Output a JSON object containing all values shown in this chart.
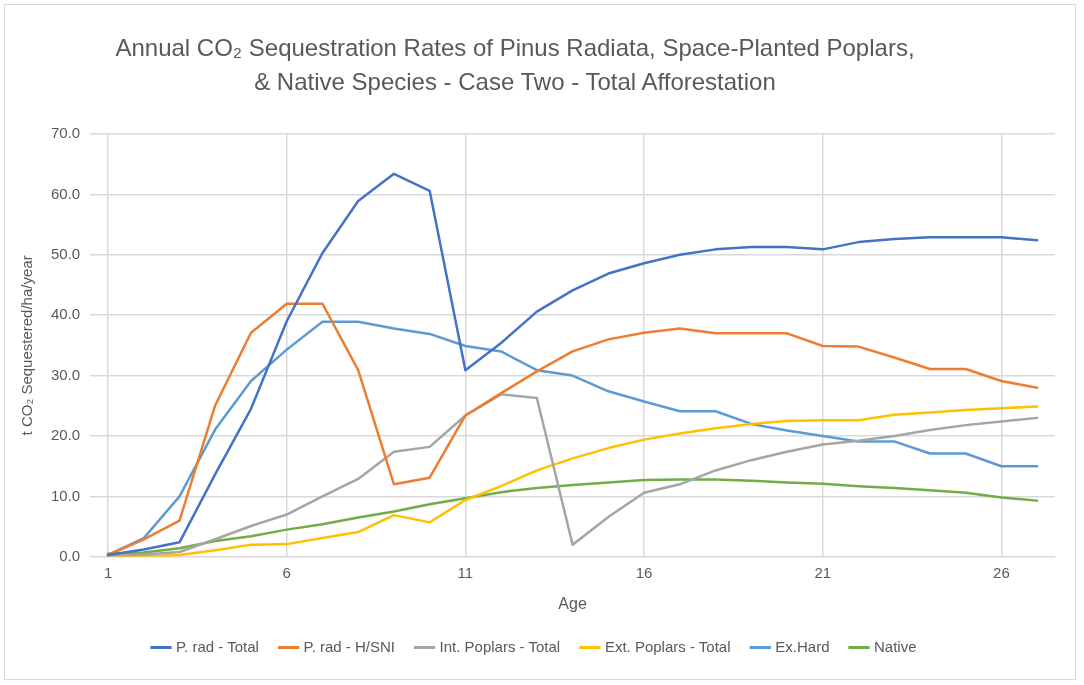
{
  "chart_data": {
    "type": "line",
    "title": "Annual CO₂ Sequestration Rates of Pinus Radiata, Space-Planted Poplars, & Native Species - Case Two - Total Afforestation",
    "xlabel": "Age",
    "ylabel": "t CO₂ Sequestered/ha/year",
    "x": [
      1,
      2,
      3,
      4,
      5,
      6,
      7,
      8,
      9,
      10,
      11,
      12,
      13,
      14,
      15,
      16,
      17,
      18,
      19,
      20,
      21,
      22,
      23,
      24,
      25,
      26,
      27
    ],
    "series": [
      {
        "name": "P. rad - Total",
        "color": "#4472c4",
        "values": [
          0.3,
          1.2,
          2.4,
          13.7,
          24.5,
          39.0,
          50.3,
          58.9,
          63.4,
          60.6,
          30.9,
          35.4,
          40.6,
          44.1,
          46.9,
          48.6,
          50.0,
          50.9,
          51.3,
          51.3,
          50.9,
          52.1,
          52.6,
          52.9,
          52.9,
          52.9,
          52.4
        ]
      },
      {
        "name": "P. rad - H/SNI",
        "color": "#ed7d31",
        "values": [
          0.3,
          2.9,
          6.0,
          25.1,
          37.1,
          41.9,
          41.9,
          30.9,
          12.0,
          13.1,
          23.4,
          27.1,
          30.7,
          34.0,
          36.0,
          37.1,
          37.8,
          37.0,
          37.0,
          37.0,
          34.9,
          34.8,
          33.0,
          31.1,
          31.1,
          29.1,
          28.0
        ]
      },
      {
        "name": "Int. Poplars - Total",
        "color": "#a5a5a5",
        "values": [
          0.2,
          0.4,
          0.8,
          2.9,
          5.1,
          7.0,
          10.0,
          12.9,
          17.4,
          18.2,
          23.4,
          26.9,
          26.3,
          2.0,
          6.6,
          10.6,
          12.0,
          14.3,
          16.0,
          17.4,
          18.6,
          19.2,
          20.0,
          21.0,
          21.8,
          22.4,
          23.0
        ]
      },
      {
        "name": "Ext. Poplars - Total",
        "color": "#ffc000",
        "values": [
          0.0,
          0.1,
          0.3,
          1.1,
          2.0,
          2.1,
          3.1,
          4.1,
          6.9,
          5.7,
          9.4,
          11.7,
          14.3,
          16.3,
          18.0,
          19.4,
          20.4,
          21.3,
          22.0,
          22.5,
          22.6,
          22.6,
          23.5,
          23.9,
          24.3,
          24.6,
          24.9
        ]
      },
      {
        "name": "Ex.Hard",
        "color": "#5b9bd5",
        "values": [
          0.3,
          3.1,
          10.0,
          21.1,
          29.1,
          34.3,
          38.9,
          38.9,
          37.8,
          36.9,
          34.9,
          34.0,
          30.9,
          30.0,
          27.4,
          25.7,
          24.1,
          24.1,
          22.0,
          20.9,
          20.0,
          19.1,
          19.1,
          17.1,
          17.1,
          15.0,
          15.0
        ]
      },
      {
        "name": "Native",
        "color": "#70ad47",
        "values": [
          0.5,
          0.7,
          1.4,
          2.6,
          3.4,
          4.5,
          5.4,
          6.5,
          7.5,
          8.7,
          9.7,
          10.7,
          11.4,
          11.9,
          12.3,
          12.7,
          12.8,
          12.8,
          12.6,
          12.3,
          12.1,
          11.7,
          11.4,
          11.0,
          10.6,
          9.8,
          9.3
        ]
      }
    ],
    "xlim": [
      0.5,
      27.5
    ],
    "xticks": [
      1,
      6,
      11,
      16,
      21,
      26
    ],
    "ylim": [
      0,
      70
    ],
    "yticks": [
      {
        "value": 0,
        "label": "0.0"
      },
      {
        "value": 10,
        "label": "10.0"
      },
      {
        "value": 20,
        "label": "20.0"
      },
      {
        "value": 30,
        "label": "30.0"
      },
      {
        "value": 40,
        "label": "40.0"
      },
      {
        "value": 50,
        "label": "50.0"
      },
      {
        "value": 60,
        "label": "60.0"
      },
      {
        "value": 70,
        "label": "70.0"
      }
    ],
    "grid": true,
    "legend": "bottom",
    "marker": "none",
    "line_style": "solid"
  }
}
